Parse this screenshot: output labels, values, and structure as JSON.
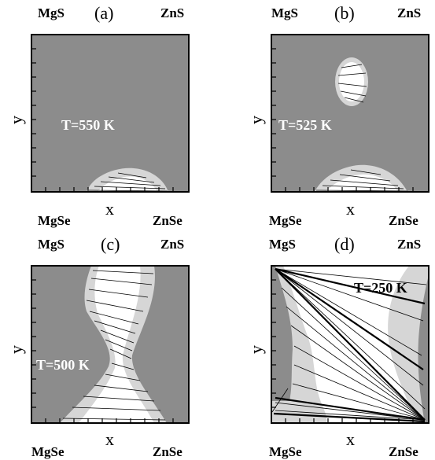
{
  "colors": {
    "two_phase": "#8c8c8c",
    "metastable": "#d6d6d6",
    "single_phase": "#ffffff",
    "frame": "#000000"
  },
  "panels": [
    {
      "id": "a",
      "tag": "(a)",
      "top_left": "MgS",
      "top_right": "ZnS",
      "bottom_left": "MgSe",
      "bottom_right": "ZnSe",
      "xlabel": "x",
      "ylabel": "y",
      "temperature": "T=550 K"
    },
    {
      "id": "b",
      "tag": "(b)",
      "top_left": "MgS",
      "top_right": "ZnS",
      "bottom_left": "MgSe",
      "bottom_right": "ZnSe",
      "xlabel": "x",
      "ylabel": "y",
      "temperature": "T=525 K"
    },
    {
      "id": "c",
      "tag": "(c)",
      "top_left": "MgS",
      "top_right": "ZnS",
      "bottom_left": "MgSe",
      "bottom_right": "ZnSe",
      "xlabel": "x",
      "ylabel": "y",
      "temperature": "T=500 K"
    },
    {
      "id": "d",
      "tag": "(d)",
      "top_left": "MgS",
      "top_right": "ZnS",
      "bottom_left": "MgSe",
      "bottom_right": "ZnSe",
      "xlabel": "x",
      "ylabel": "y",
      "temperature": "T=250 K"
    }
  ]
}
